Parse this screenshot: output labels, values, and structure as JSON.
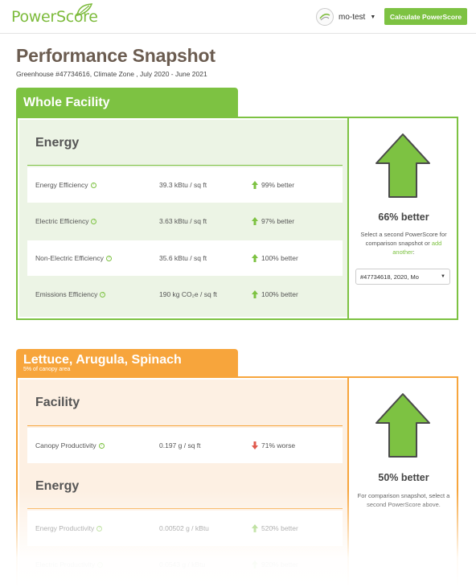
{
  "header": {
    "logo_text": "PowerScore",
    "user_name": "mo-test",
    "calc_button": "Calculate PowerScore"
  },
  "page": {
    "title": "Performance Snapshot",
    "subtitle": "Greenhouse #47734616, Climate Zone , July 2020 - June 2021"
  },
  "whole_facility": {
    "tab_label": "Whole Facility",
    "group_title": "Energy",
    "metrics": [
      {
        "name": "Energy Efficiency",
        "value": "39.3 kBtu / sq ft",
        "change": "99% better",
        "direction": "up"
      },
      {
        "name": "Electric Efficiency",
        "value": "3.63 kBtu / sq ft",
        "change": "97% better",
        "direction": "up"
      },
      {
        "name": "Non-Electric Efficiency",
        "value": "35.6 kBtu / sq ft",
        "change": "100% better",
        "direction": "up"
      },
      {
        "name": "Emissions Efficiency",
        "value": "190 kg CO₂e / sq ft",
        "change": "100% better",
        "direction": "up"
      }
    ],
    "summary": "66% better",
    "note_before": "Select a second PowerScore for comparison snapshot or ",
    "note_link": "add another",
    "note_after": ":",
    "select_value": "#47734618, 2020, Mo"
  },
  "crop": {
    "tab_label": "Lettuce, Arugula, Spinach",
    "tab_sub": "5% of canopy area",
    "facility_title": "Facility",
    "facility_metrics": [
      {
        "name": "Canopy Productivity",
        "value": "0.197 g / sq ft",
        "change": "71% worse",
        "direction": "down"
      }
    ],
    "energy_title": "Energy",
    "energy_metrics": [
      {
        "name": "Energy Productivity",
        "value": "0.00502 g / kBtu",
        "change": "520% better",
        "direction": "up"
      },
      {
        "name": "Electric Productivity",
        "value": "0.0543 g / kBtu",
        "change": "920% better",
        "direction": "up"
      }
    ],
    "summary": "50% better",
    "note": "For comparison snapshot, select a second PowerScore above."
  },
  "colors": {
    "green": "#7dc242",
    "orange": "#f7a53c",
    "title_brown": "#6b5c50",
    "red_arrow": "#e05a4e"
  },
  "icons": {
    "info": "info-icon",
    "up": "arrow-up-icon",
    "down": "arrow-down-icon"
  }
}
